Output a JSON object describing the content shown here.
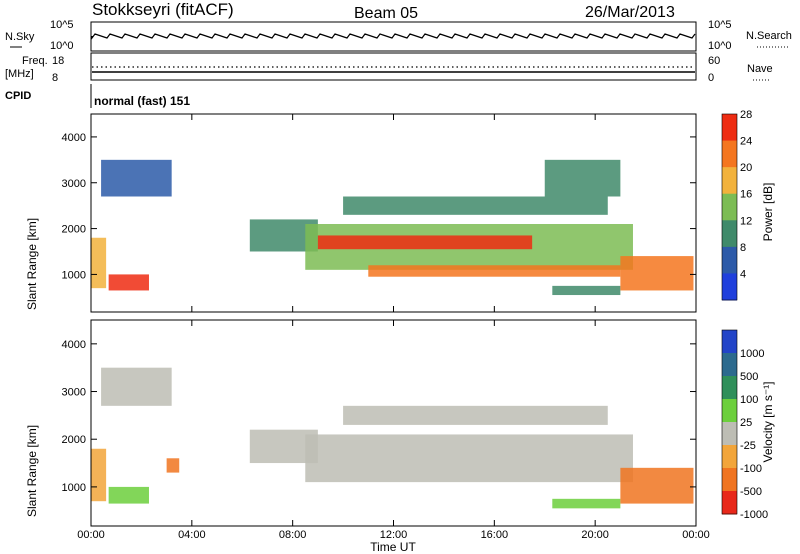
{
  "header": {
    "station": "Stokkseyri (fitACF)",
    "beam": "Beam 05",
    "date": "26/Mar/2013"
  },
  "strip_labels": {
    "nsky": "N.Sky",
    "nsky_tick_top": "10^5",
    "nsky_tick_bottom": "10^0",
    "nsearch": "N.Search",
    "nsearch_tick_top": "10^5",
    "nsearch_tick_bottom": "10^0",
    "freq": "Freq.",
    "freq_unit": "[MHz]",
    "freq_tick_top": "18",
    "freq_tick_bottom": "8",
    "nave": "Nave",
    "nave_tick_top": "60",
    "nave_tick_bottom": "0",
    "cpid": "CPID",
    "cpid_value": "normal (fast) 151"
  },
  "axes": {
    "xlabel": "Time UT",
    "ylabel": "Slant Range [km]",
    "power_label": "Power [dB]",
    "velocity_label": "Velocity [m s⁻¹]"
  },
  "chart_data": [
    {
      "type": "heatmap",
      "name": "Power",
      "xlabel": "Time UT",
      "ylabel": "Slant Range [km]",
      "x_ticks": [
        "00:00",
        "04:00",
        "08:00",
        "12:00",
        "16:00",
        "20:00",
        "00:00"
      ],
      "x_range_hours": [
        0,
        24
      ],
      "y_ticks": [
        1000,
        2000,
        3000,
        4000
      ],
      "ylim": [
        180,
        4500
      ],
      "colorbar_label": "Power [dB]",
      "colorbar_ticks": [
        4,
        8,
        12,
        16,
        20,
        24,
        28
      ],
      "colorbar_colors": [
        "#1f3fdc",
        "#2c5aa8",
        "#3f8a6a",
        "#7cbc54",
        "#f2b23c",
        "#f4761f",
        "#ee2c12"
      ],
      "regions": [
        {
          "t": [
            0.0,
            0.6
          ],
          "r": [
            700,
            1800
          ],
          "v": 18
        },
        {
          "t": [
            0.4,
            3.2
          ],
          "r": [
            2700,
            3500
          ],
          "v": 8
        },
        {
          "t": [
            0.7,
            2.3
          ],
          "r": [
            650,
            1000
          ],
          "v": 26
        },
        {
          "t": [
            6.3,
            9.0
          ],
          "r": [
            1500,
            2200
          ],
          "v": 9
        },
        {
          "t": [
            8.5,
            21.5
          ],
          "r": [
            1100,
            2100
          ],
          "v": 14
        },
        {
          "t": [
            9.0,
            17.5
          ],
          "r": [
            1550,
            1850
          ],
          "v": 27
        },
        {
          "t": [
            11.0,
            21.0
          ],
          "r": [
            950,
            1200
          ],
          "v": 24
        },
        {
          "t": [
            10.0,
            20.5
          ],
          "r": [
            2300,
            2700
          ],
          "v": 9
        },
        {
          "t": [
            18.3,
            21.0
          ],
          "r": [
            550,
            750
          ],
          "v": 9
        },
        {
          "t": [
            21.0,
            23.9
          ],
          "r": [
            650,
            1400
          ],
          "v": 24
        },
        {
          "t": [
            18.0,
            21.0
          ],
          "r": [
            2700,
            3500
          ],
          "v": 9
        }
      ]
    },
    {
      "type": "heatmap",
      "name": "Velocity",
      "xlabel": "Time UT",
      "ylabel": "Slant Range [km]",
      "x_ticks": [
        "00:00",
        "04:00",
        "08:00",
        "12:00",
        "16:00",
        "20:00",
        "00:00"
      ],
      "x_range_hours": [
        0,
        24
      ],
      "y_ticks": [
        1000,
        2000,
        3000,
        4000
      ],
      "ylim": [
        180,
        4500
      ],
      "colorbar_label": "Velocity [m s⁻¹]",
      "colorbar_ticks": [
        1000,
        500,
        100,
        25,
        -25,
        -100,
        -500,
        -1000
      ],
      "colorbar_colors": [
        "#2244c8",
        "#2c6a8e",
        "#2f8f5a",
        "#6ccf3c",
        "#bdbdb4",
        "#f2a53a",
        "#f07420",
        "#e8281a"
      ],
      "regions": [
        {
          "t": [
            0.0,
            0.6
          ],
          "r": [
            700,
            1800
          ],
          "v": -80
        },
        {
          "t": [
            0.4,
            3.2
          ],
          "r": [
            2700,
            3500
          ],
          "v": 0
        },
        {
          "t": [
            0.7,
            2.3
          ],
          "r": [
            650,
            1000
          ],
          "v": 60
        },
        {
          "t": [
            3.0,
            3.5
          ],
          "r": [
            1300,
            1600
          ],
          "v": -400
        },
        {
          "t": [
            6.3,
            9.0
          ],
          "r": [
            1500,
            2200
          ],
          "v": 0
        },
        {
          "t": [
            8.5,
            21.5
          ],
          "r": [
            1100,
            2100
          ],
          "v": 0
        },
        {
          "t": [
            10.0,
            20.5
          ],
          "r": [
            2300,
            2700
          ],
          "v": 0
        },
        {
          "t": [
            18.3,
            21.0
          ],
          "r": [
            550,
            750
          ],
          "v": 80
        },
        {
          "t": [
            21.0,
            23.9
          ],
          "r": [
            650,
            1400
          ],
          "v": -500
        }
      ]
    }
  ]
}
